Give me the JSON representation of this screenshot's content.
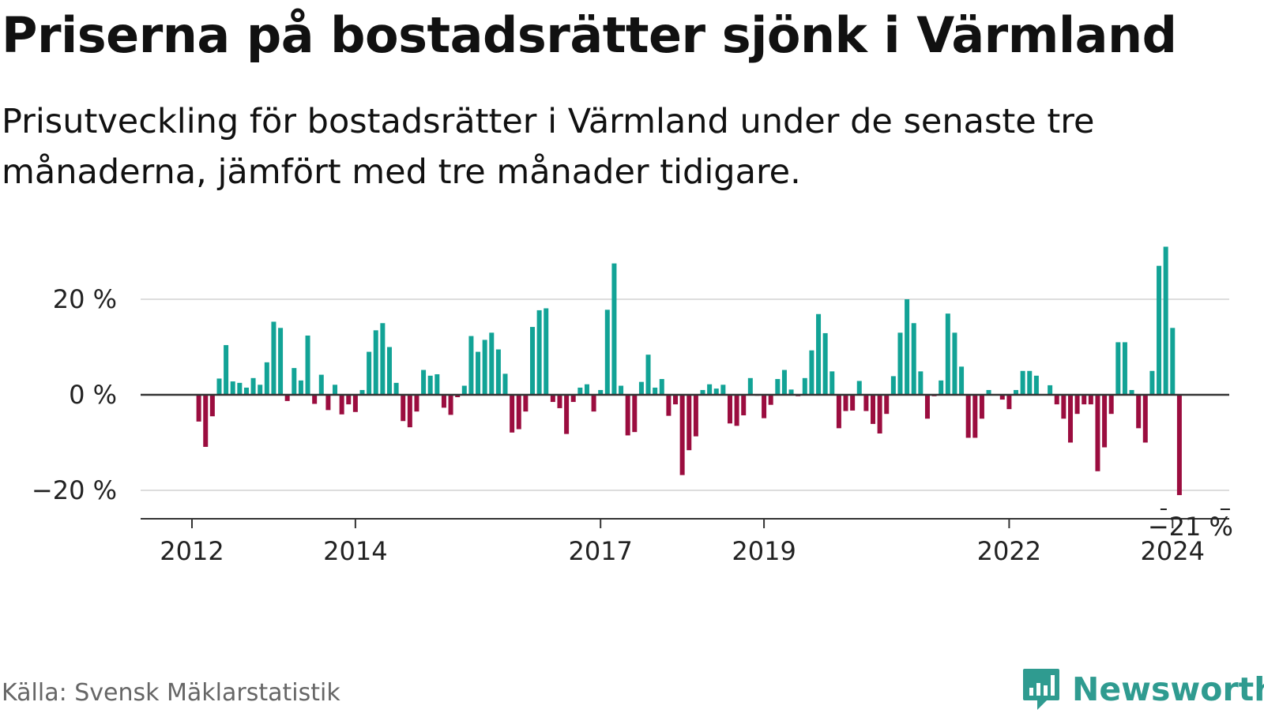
{
  "header": {
    "title": "Priserna på bostadsrätter sjönk i Värmland",
    "subtitle": "Prisutveckling för bostadsrätter i Värmland under de senaste tre månaderna, jämfört med tre månader tidigare."
  },
  "footer": {
    "source": "Källa: Svensk Mäklarstatistik",
    "brand": "Newsworthy"
  },
  "colors": {
    "positive": "#12a396",
    "negative": "#9b0d3f",
    "grid": "#dddddd",
    "axis": "#333333"
  },
  "chart_data": {
    "type": "bar",
    "title": "Priserna på bostadsrätter sjönk i Värmland",
    "ylabel": "",
    "xlabel": "",
    "ylim": [
      -25,
      32
    ],
    "y_ticks": [
      20,
      0,
      -20
    ],
    "y_tick_labels": [
      "20 %",
      "0 %",
      "−20 %"
    ],
    "x_tick_labels": [
      "2012",
      "2014",
      "2017",
      "2019",
      "2022",
      "2024"
    ],
    "x_tick_months": [
      0,
      24,
      60,
      84,
      120,
      144
    ],
    "start": "2011-12",
    "end": "2024-03",
    "last_value_label": "−21 %",
    "values": [
      0,
      -5.6,
      -10.9,
      -4.5,
      3.4,
      10.4,
      2.8,
      2.5,
      1.5,
      3.5,
      2.1,
      6.8,
      15.3,
      14.0,
      -1.3,
      5.6,
      3.0,
      12.4,
      -1.9,
      4.2,
      -3.2,
      2.1,
      -4.1,
      -2.0,
      -3.6,
      1.0,
      9.0,
      13.5,
      15.0,
      10.0,
      2.5,
      -5.5,
      -6.8,
      -3.5,
      5.2,
      4.0,
      4.3,
      -2.7,
      -4.2,
      -0.5,
      1.9,
      12.3,
      9.0,
      11.5,
      13.0,
      9.5,
      4.4,
      -7.9,
      -7.2,
      -3.5,
      14.2,
      17.7,
      18.1,
      -1.5,
      -2.8,
      -8.2,
      -1.5,
      1.5,
      2.2,
      -3.5,
      1.0,
      17.8,
      27.5,
      1.9,
      -8.5,
      -7.8,
      2.7,
      8.4,
      1.5,
      3.3,
      -4.4,
      -2.0,
      -16.8,
      -11.6,
      -8.7,
      1.0,
      2.2,
      1.3,
      2.1,
      -6.0,
      -6.5,
      -4.3,
      3.5,
      -0.2,
      -4.9,
      -2.1,
      3.3,
      5.2,
      1.1,
      -0.3,
      3.5,
      9.3,
      16.9,
      12.9,
      4.9,
      -7.0,
      -3.4,
      -3.3,
      2.9,
      -3.4,
      -6.1,
      -8.1,
      -4.0,
      3.9,
      13.0,
      20.0,
      15.0,
      4.9,
      -5.0,
      -0.3,
      3.0,
      17.0,
      13.0,
      5.9,
      -9.0,
      -9.0,
      -5.0,
      1.0,
      -0.1,
      -1.0,
      -3.0,
      1.0,
      5.0,
      5.0,
      4.0,
      -0.1,
      2.0,
      -2.0,
      -5.0,
      -10.0,
      -4.0,
      -2.0,
      -2.0,
      -16.0,
      -11.0,
      -4.0,
      11.0,
      11.0,
      1.0,
      -7.0,
      -10.0,
      5.0,
      27.0,
      31.0,
      14.0,
      -21.0
    ]
  }
}
